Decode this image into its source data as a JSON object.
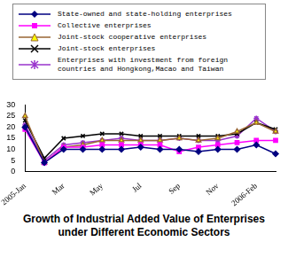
{
  "chart_data": {
    "type": "line",
    "title": "Growth of Industrial Added Value of Enterprises under Different Economic Sectors",
    "categories": [
      "2005-Jan",
      null,
      "Mar",
      null,
      "May",
      null,
      "Jul",
      null,
      "Sep",
      null,
      "Nov",
      null,
      "2006-Feb",
      null
    ],
    "series": [
      {
        "name": "State-owned and state-holding enterprises",
        "color": "#000080",
        "marker": "diamond",
        "values": [
          20,
          4,
          10,
          10,
          10,
          10,
          11,
          10,
          10,
          9,
          10,
          10,
          12,
          8
        ]
      },
      {
        "name": "Collective enterprises",
        "color": "#ff00ff",
        "marker": "square",
        "values": [
          19,
          4,
          11,
          11,
          12,
          12,
          12,
          12,
          9,
          11,
          12,
          13,
          14,
          14
        ]
      },
      {
        "name": "Joint-stock cooperative enterprises",
        "color": "#996633",
        "marker": "triangle",
        "values": [
          25,
          4,
          11,
          12,
          14,
          14,
          14,
          14,
          15,
          14,
          15,
          18,
          22,
          18
        ]
      },
      {
        "name": "Joint-stock enterprises",
        "color": "#000000",
        "marker": "cross",
        "values": [
          23,
          6,
          15,
          16,
          17,
          17,
          16,
          16,
          16,
          16,
          16,
          17,
          22,
          19
        ]
      },
      {
        "name": "Enterprises with investment from foreign countries and Hongkong,Macao and Taiwan",
        "color": "#9933cc",
        "marker": "star",
        "values": [
          21,
          5,
          12,
          13,
          14,
          15,
          14,
          14,
          15,
          14,
          14,
          16,
          24,
          18
        ]
      }
    ],
    "ylim": [
      0,
      30
    ],
    "yticks": [
      0,
      5,
      10,
      15,
      20,
      25,
      30
    ],
    "grid": false,
    "legend": "top"
  }
}
